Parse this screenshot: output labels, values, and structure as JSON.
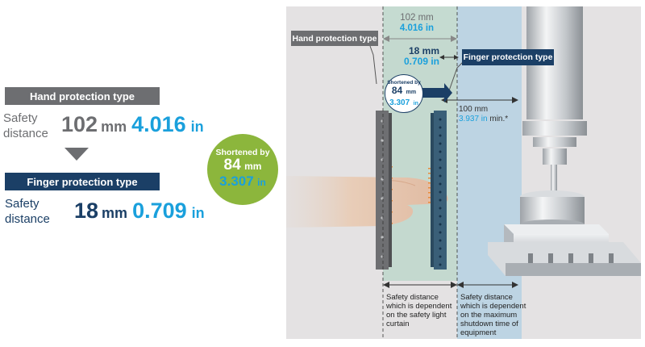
{
  "left": {
    "hand": {
      "header": "Hand protection type",
      "label": "Safety distance",
      "mm_value": "102",
      "mm_unit": "mm",
      "in_value": "4.016",
      "in_unit": "in"
    },
    "finger": {
      "header": "Finger protection type",
      "label": "Safety distance",
      "mm_value": "18",
      "mm_unit": "mm",
      "in_value": "0.709",
      "in_unit": "in"
    },
    "circle": {
      "line1": "Shortened by",
      "mm_value": "84",
      "mm_unit": "mm",
      "in_value": "3.307",
      "in_unit": "in"
    }
  },
  "scene": {
    "top_dim": {
      "mm": "102 mm",
      "in": "4.016 in"
    },
    "hand_tag": "Hand protection type",
    "finger_tag": "Finger protection type",
    "finger_dim": {
      "mm": "18 mm",
      "in": "0.709 in"
    },
    "small_circle": {
      "line1": "Shortened by",
      "mm_value": "84",
      "mm_unit": "mm",
      "in_value": "3.307",
      "in_unit": "in"
    },
    "machine_dim": {
      "mm": "100 mm",
      "in": "3.937 in",
      "suffix": "min.*"
    },
    "bottom_left_note": "Safety distance which is dependent on the safety light curtain",
    "bottom_right_note": "Safety distance which is dependent on the maximum shutdown time of equipment"
  },
  "colors": {
    "grey_header": "#6d6e71",
    "navy_header": "#1b3f66",
    "blue_value": "#1aa0dc",
    "dark_value": "#1b3f66",
    "grey_value": "#6d6e71",
    "green_circle": "#8cb63c"
  }
}
